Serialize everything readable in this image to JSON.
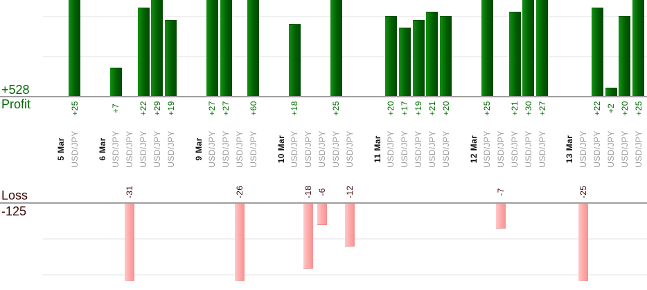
{
  "left_labels": {
    "profit_total": "+528",
    "profit_axis": "Profit",
    "loss_axis": "Loss",
    "loss_total": "-125"
  },
  "chart_data": {
    "type": "bar",
    "title": "",
    "symbol": "USD/JPY",
    "profit_total": "+528",
    "loss_total": "-125",
    "profit_axis_label": "Profit",
    "loss_axis_label": "Loss",
    "grid": true,
    "orientation": "vertical",
    "profit_gridline_step": 10,
    "loss_gridline_step": 10,
    "days": [
      {
        "date": "5 Mar",
        "trades": [
          25
        ]
      },
      {
        "date": "6 Mar",
        "trades": [
          7,
          -31,
          22,
          29,
          19
        ]
      },
      {
        "date": "9 Mar",
        "trades": [
          27,
          27,
          -26,
          60
        ]
      },
      {
        "date": "10 Mar",
        "trades": [
          18,
          -18,
          -6,
          25,
          -12
        ]
      },
      {
        "date": "11 Mar",
        "trades": [
          20,
          17,
          19,
          21,
          20
        ]
      },
      {
        "date": "12 Mar",
        "trades": [
          25,
          -7,
          21,
          30,
          27
        ]
      },
      {
        "date": "13 Mar",
        "trades": [
          -25,
          22,
          2,
          20,
          25
        ]
      }
    ],
    "colors": {
      "profit_bar_light": "#129112",
      "profit_bar_mid": "#026002",
      "profit_bar_dark": "#014801",
      "profit_bar_edge": "#015101",
      "loss_bar_light": "#ffc8c8",
      "loss_bar_mid": "#fcaaaa",
      "loss_bar_dark": "#f89090",
      "loss_bar_edge": "#ef8585",
      "profit_text": "#006a00",
      "loss_text": "#3d0606",
      "date_text": "#111111",
      "symbol_text": "#9b9b9b",
      "axis_line": "#9e9e9e",
      "gridline": "#f0f0f0"
    }
  }
}
